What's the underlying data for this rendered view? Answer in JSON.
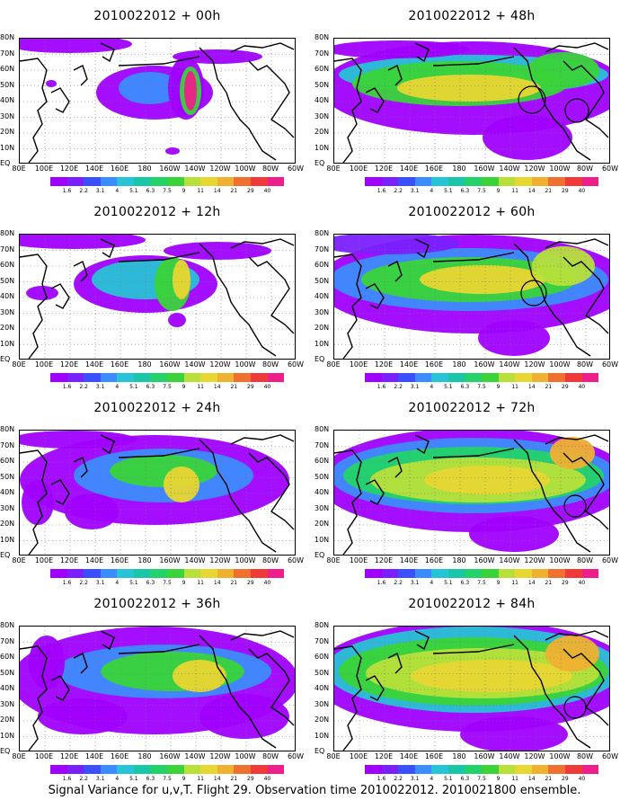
{
  "panels": [
    {
      "title": "2010022012 + 00h"
    },
    {
      "title": "2010022012 + 48h"
    },
    {
      "title": "2010022012 + 12h"
    },
    {
      "title": "2010022012 + 60h"
    },
    {
      "title": "2010022012 + 24h"
    },
    {
      "title": "2010022012 + 72h"
    },
    {
      "title": "2010022012 + 36h"
    },
    {
      "title": "2010022012 + 84h"
    }
  ],
  "lat_labels": [
    "80N",
    "70N",
    "60N",
    "50N",
    "40N",
    "30N",
    "20N",
    "10N",
    "EQ"
  ],
  "lon_labels": [
    "80E",
    "100E",
    "120E",
    "140E",
    "160E",
    "180",
    "160W",
    "140W",
    "120W",
    "100W",
    "80W",
    "60W"
  ],
  "colorbar": {
    "labels": [
      "1.6",
      "2.2",
      "3.1",
      "4",
      "5.1",
      "6.3",
      "7.5",
      "9",
      "11",
      "14",
      "21",
      "29",
      "40"
    ],
    "colors": [
      "#a000ff",
      "#7a20ff",
      "#3a50ff",
      "#3b8cff",
      "#27c3d6",
      "#19c7a8",
      "#23d36a",
      "#3ad43a",
      "#b7e03a",
      "#e8d633",
      "#f0b030",
      "#f07030",
      "#f03a3a",
      "#ee1f8a"
    ]
  },
  "caption": "Signal Variance for u,v,T. Flight 29. Observation time 2010022012. 2010021800 ensemble."
}
